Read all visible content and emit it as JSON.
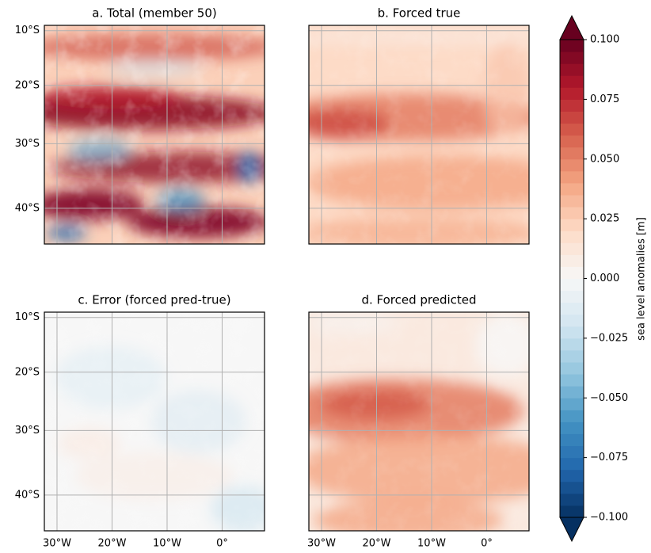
{
  "panels": [
    {
      "title": "a. Total (member 50)"
    },
    {
      "title": "b. Forced true"
    },
    {
      "title": "c. Error (forced pred-true)"
    },
    {
      "title": "d. Forced predicted"
    }
  ],
  "map": {
    "xlim": [
      -32.3,
      7.7
    ],
    "ylim": [
      -45,
      -9
    ],
    "xticks": [
      {
        "value": -30,
        "label": "30°W"
      },
      {
        "value": -20,
        "label": "20°W"
      },
      {
        "value": -10,
        "label": "10°W"
      },
      {
        "value": 0,
        "label": "0°"
      }
    ],
    "yticks": [
      {
        "value": -10,
        "label": "10°S"
      },
      {
        "value": -20,
        "label": "20°S"
      },
      {
        "value": -30,
        "label": "30°S"
      },
      {
        "value": -40,
        "label": "40°S"
      }
    ],
    "grid": true
  },
  "colorbar": {
    "label": "sea level anomalies [m]",
    "vlim": [
      -0.1,
      0.1
    ],
    "levels": 40,
    "ticks": [
      {
        "value": 0.1,
        "label": "0.100"
      },
      {
        "value": 0.075,
        "label": "0.075"
      },
      {
        "value": 0.05,
        "label": "0.050"
      },
      {
        "value": 0.025,
        "label": "0.025"
      },
      {
        "value": 0,
        "label": "0.000"
      },
      {
        "value": -0.025,
        "label": "−0.025"
      },
      {
        "value": -0.05,
        "label": "−0.050"
      },
      {
        "value": -0.075,
        "label": "−0.075"
      },
      {
        "value": -0.1,
        "label": "−0.100"
      }
    ],
    "colors": [
      "#053061",
      "#2166ac",
      "#4393c3",
      "#92c5de",
      "#d1e5f0",
      "#f7f7f7",
      "#fddbc7",
      "#f4a582",
      "#d6604d",
      "#b2182b",
      "#67001f"
    ]
  }
}
